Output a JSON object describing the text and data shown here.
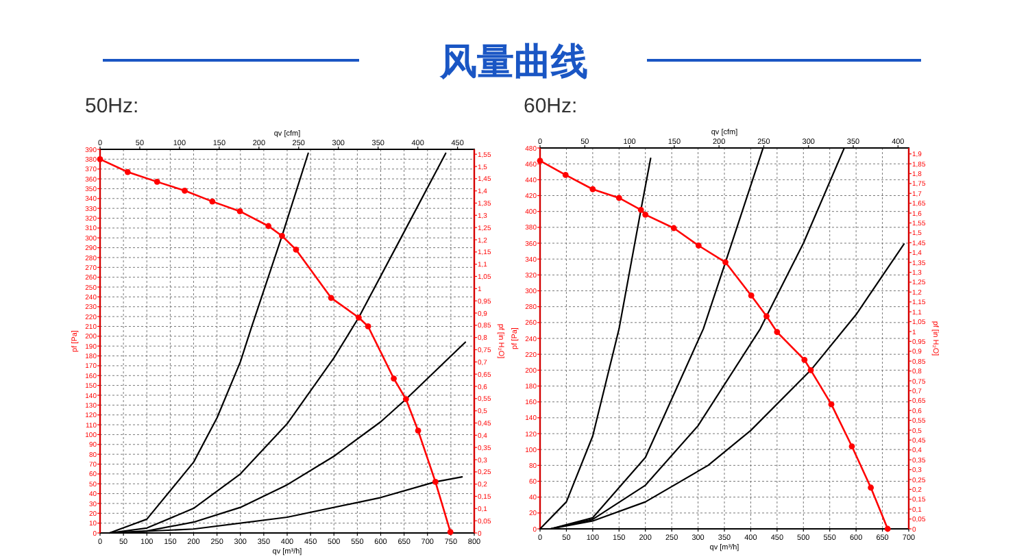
{
  "chart_data": [
    {
      "type": "line",
      "title": "风量曲线",
      "subtitle": "50Hz:",
      "xlabel": "qv [m³/h]",
      "x2label": "qv [cfm]",
      "ylabel": "pf [Pa]",
      "y2label": "pf [in H₂O]",
      "grid": true,
      "xlim": [
        0,
        800
      ],
      "xticks": [
        0,
        50,
        100,
        150,
        200,
        250,
        300,
        350,
        400,
        450,
        500,
        550,
        600,
        650,
        700,
        750,
        800
      ],
      "x2lim": [
        0,
        471
      ],
      "x2ticks": [
        0,
        50,
        100,
        150,
        200,
        250,
        300,
        350,
        400,
        450
      ],
      "ylim": [
        0,
        390
      ],
      "yticks": [
        0,
        10,
        20,
        30,
        40,
        50,
        60,
        70,
        80,
        90,
        100,
        110,
        120,
        130,
        140,
        150,
        160,
        170,
        180,
        190,
        200,
        210,
        220,
        230,
        240,
        250,
        260,
        270,
        280,
        290,
        300,
        310,
        320,
        330,
        340,
        350,
        360,
        370,
        380,
        390
      ],
      "y2lim": [
        0,
        1.57
      ],
      "y2ticks": [
        {
          "value": 0,
          "label": "0"
        },
        {
          "value": 0.05,
          "label": "0,05"
        },
        {
          "value": 0.1,
          "label": "0,1"
        },
        {
          "value": 0.15,
          "label": "0,15"
        },
        {
          "value": 0.2,
          "label": "0,2"
        },
        {
          "value": 0.25,
          "label": "0,25"
        },
        {
          "value": 0.3,
          "label": "0,3"
        },
        {
          "value": 0.35,
          "label": "0,35"
        },
        {
          "value": 0.4,
          "label": "0,4"
        },
        {
          "value": 0.45,
          "label": "0,45"
        },
        {
          "value": 0.5,
          "label": "0,5"
        },
        {
          "value": 0.55,
          "label": "0,55"
        },
        {
          "value": 0.6,
          "label": "0,6"
        },
        {
          "value": 0.65,
          "label": "0,65"
        },
        {
          "value": 0.7,
          "label": "0,7"
        },
        {
          "value": 0.75,
          "label": "0,75"
        },
        {
          "value": 0.8,
          "label": "0,8"
        },
        {
          "value": 0.85,
          "label": "0,85"
        },
        {
          "value": 0.9,
          "label": "0,9"
        },
        {
          "value": 0.95,
          "label": "0,95"
        },
        {
          "value": 1,
          "label": "1"
        },
        {
          "value": 1.05,
          "label": "1,05"
        },
        {
          "value": 1.1,
          "label": "1,1"
        },
        {
          "value": 1.15,
          "label": "1,15"
        },
        {
          "value": 1.2,
          "label": "1,2"
        },
        {
          "value": 1.25,
          "label": "1,25"
        },
        {
          "value": 1.3,
          "label": "1,3"
        },
        {
          "value": 1.35,
          "label": "1,35"
        },
        {
          "value": 1.4,
          "label": "1,4"
        },
        {
          "value": 1.45,
          "label": "1,45"
        },
        {
          "value": 1.5,
          "label": "1,5"
        },
        {
          "value": 1.55,
          "label": "1,55"
        }
      ],
      "series": [
        {
          "color": "#ff0000",
          "marker": "circle",
          "x": [
            0,
            59,
            122,
            181,
            240,
            299,
            360,
            389,
            419,
            494,
            553,
            573,
            628,
            654,
            680,
            717,
            749
          ],
          "values": [
            380,
            367,
            357,
            348,
            337,
            327,
            312,
            302,
            288,
            239,
            219,
            210,
            157,
            136,
            104,
            52,
            1
          ]
        },
        {
          "color": "#000000",
          "marker": "none",
          "x": [
            20,
            100,
            200,
            250,
            300,
            323,
            389,
            445
          ],
          "values": [
            0,
            14,
            72,
            117,
            174,
            208,
            302,
            386
          ]
        },
        {
          "color": "#000000",
          "marker": "none",
          "x": [
            20,
            100,
            200,
            300,
            400,
            500,
            553,
            650,
            739
          ],
          "values": [
            0,
            5,
            25,
            60,
            111,
            178,
            219,
            306,
            386
          ]
        },
        {
          "color": "#000000",
          "marker": "none",
          "x": [
            20,
            100,
            200,
            300,
            400,
            500,
            600,
            654,
            781
          ],
          "values": [
            0,
            2,
            11,
            26,
            49,
            78,
            113,
            136,
            194
          ]
        },
        {
          "color": "#000000",
          "marker": "none",
          "x": [
            20,
            200,
            400,
            600,
            717,
            774
          ],
          "values": [
            0,
            4,
            16,
            36,
            52,
            57
          ]
        }
      ]
    },
    {
      "type": "line",
      "subtitle": "60Hz:",
      "xlabel": "qv [m³/h]",
      "x2label": "qv [cfm]",
      "ylabel": "pf [Pa]",
      "y2label": "pf [in H₂O]",
      "grid": true,
      "xlim": [
        0,
        700
      ],
      "xticks": [
        0,
        50,
        100,
        150,
        200,
        250,
        300,
        350,
        400,
        450,
        500,
        550,
        600,
        650,
        700
      ],
      "x2lim": [
        0,
        412
      ],
      "x2ticks": [
        0,
        50,
        100,
        150,
        200,
        250,
        300,
        350,
        400
      ],
      "ylim": [
        0,
        480
      ],
      "yticks": [
        0,
        20,
        40,
        60,
        80,
        100,
        120,
        140,
        160,
        180,
        200,
        220,
        240,
        260,
        280,
        300,
        320,
        340,
        360,
        380,
        400,
        420,
        440,
        460,
        480
      ],
      "y2lim": [
        0,
        1.93
      ],
      "y2ticks": [
        {
          "value": 0,
          "label": "0"
        },
        {
          "value": 0.05,
          "label": "0,05"
        },
        {
          "value": 0.1,
          "label": "0,1"
        },
        {
          "value": 0.15,
          "label": "0,15"
        },
        {
          "value": 0.2,
          "label": "0,2"
        },
        {
          "value": 0.25,
          "label": "0,25"
        },
        {
          "value": 0.3,
          "label": "0,3"
        },
        {
          "value": 0.35,
          "label": "0,35"
        },
        {
          "value": 0.4,
          "label": "0,4"
        },
        {
          "value": 0.45,
          "label": "0,45"
        },
        {
          "value": 0.5,
          "label": "0,5"
        },
        {
          "value": 0.55,
          "label": "0,55"
        },
        {
          "value": 0.6,
          "label": "0,6"
        },
        {
          "value": 0.65,
          "label": "0,65"
        },
        {
          "value": 0.7,
          "label": "0,7"
        },
        {
          "value": 0.75,
          "label": "0,75"
        },
        {
          "value": 0.8,
          "label": "0,8"
        },
        {
          "value": 0.85,
          "label": "0,85"
        },
        {
          "value": 0.9,
          "label": "0,9"
        },
        {
          "value": 0.95,
          "label": "0,95"
        },
        {
          "value": 1,
          "label": "1"
        },
        {
          "value": 1.05,
          "label": "1,05"
        },
        {
          "value": 1.1,
          "label": "1,1"
        },
        {
          "value": 1.15,
          "label": "1,15"
        },
        {
          "value": 1.2,
          "label": "1,2"
        },
        {
          "value": 1.25,
          "label": "1,25"
        },
        {
          "value": 1.3,
          "label": "1,3"
        },
        {
          "value": 1.35,
          "label": "1,35"
        },
        {
          "value": 1.4,
          "label": "1,4"
        },
        {
          "value": 1.45,
          "label": "1,45"
        },
        {
          "value": 1.5,
          "label": "1,5"
        },
        {
          "value": 1.55,
          "label": "1,55"
        },
        {
          "value": 1.6,
          "label": "1,6"
        },
        {
          "value": 1.65,
          "label": "1,65"
        },
        {
          "value": 1.7,
          "label": "1,7"
        },
        {
          "value": 1.75,
          "label": "1,75"
        },
        {
          "value": 1.8,
          "label": "1,8"
        },
        {
          "value": 1.85,
          "label": "1,85"
        },
        {
          "value": 1.9,
          "label": "1,9"
        }
      ],
      "series": [
        {
          "color": "#ff0000",
          "marker": "circle",
          "x": [
            0,
            48.5,
            100,
            150,
            191.5,
            200,
            254,
            301,
            352,
            401,
            430,
            450,
            502,
            514,
            553,
            592,
            628,
            660
          ],
          "values": [
            464,
            446,
            428,
            417,
            402,
            396,
            379,
            357,
            336,
            294,
            268,
            248,
            213,
            200,
            157,
            104,
            52,
            0
          ]
        },
        {
          "color": "#000000",
          "marker": "none",
          "x": [
            0,
            50,
            100,
            150,
            191.5,
            210
          ],
          "values": [
            0,
            34,
            117,
            252,
            402,
            467
          ]
        },
        {
          "color": "#000000",
          "marker": "none",
          "x": [
            20,
            100,
            200,
            310,
            352,
            423
          ],
          "values": [
            0,
            14,
            90,
            252,
            336,
            479
          ]
        },
        {
          "color": "#000000",
          "marker": "none",
          "x": [
            20,
            100,
            200,
            300,
            418,
            430,
            500,
            577
          ],
          "values": [
            0,
            12,
            55,
            130,
            252,
            268,
            360,
            479
          ]
        },
        {
          "color": "#000000",
          "marker": "none",
          "x": [
            20,
            100,
            200,
            319,
            400,
            514,
            600,
            691
          ],
          "values": [
            0,
            10,
            34,
            80,
            124,
            200,
            270,
            359
          ]
        }
      ]
    }
  ]
}
